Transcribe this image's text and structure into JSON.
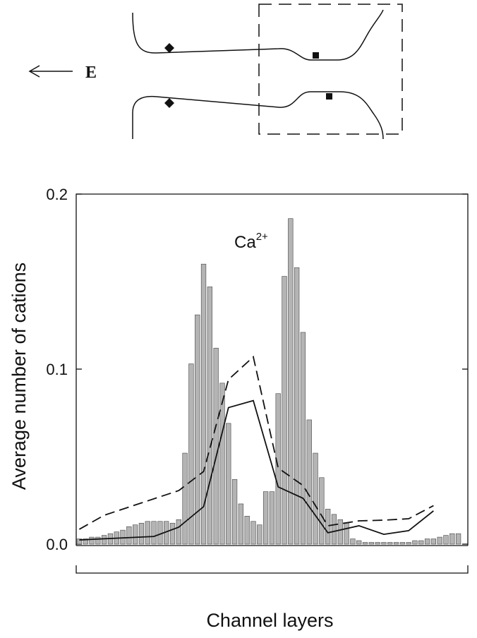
{
  "diagram": {
    "field_label": "E"
  },
  "chart_data": {
    "type": "bar",
    "ylabel": "Average number of cations",
    "xlabel": "Channel layers",
    "annotation": {
      "text": "Ca",
      "sup": "2+"
    },
    "categories": [
      null,
      null,
      null,
      null,
      null,
      null,
      null,
      null,
      null,
      null,
      null,
      null,
      null,
      null,
      null,
      null,
      null,
      null,
      null,
      null,
      null,
      null,
      null,
      null,
      null,
      null,
      null,
      null,
      null,
      null,
      null,
      null,
      null,
      null,
      null,
      null,
      null,
      null,
      null,
      null,
      null,
      null,
      null,
      null,
      null,
      null,
      null,
      null,
      null,
      null,
      null,
      null,
      null,
      null,
      null,
      null,
      null,
      null,
      null,
      null,
      null,
      null
    ],
    "values": [
      0.003,
      0.003,
      0.004,
      0.004,
      0.005,
      0.006,
      0.007,
      0.008,
      0.01,
      0.011,
      0.012,
      0.013,
      0.013,
      0.013,
      0.013,
      0.012,
      0.014,
      0.052,
      0.103,
      0.131,
      0.16,
      0.147,
      0.112,
      0.092,
      0.069,
      0.037,
      0.023,
      0.016,
      0.013,
      0.011,
      0.03,
      0.03,
      0.086,
      0.153,
      0.186,
      0.158,
      0.121,
      0.071,
      0.052,
      0.038,
      0.02,
      0.017,
      0.014,
      0.012,
      0.003,
      0.002,
      0.001,
      0.001,
      0.001,
      0.001,
      0.001,
      0.001,
      0.001,
      0.001,
      0.002,
      0.002,
      0.003,
      0.003,
      0.004,
      0.005,
      0.006,
      0.006
    ],
    "color": "#b4b4b4",
    "lines": [
      {
        "style": "dashed",
        "color": "#111111",
        "x": [
          0,
          4,
          16,
          20,
          24,
          28,
          32,
          36,
          40,
          45,
          49,
          53,
          57
        ],
        "values": [
          0.0085,
          0.0165,
          0.0306,
          0.0415,
          0.094,
          0.107,
          0.0435,
          0.0335,
          0.0105,
          0.0133,
          0.0137,
          0.0145,
          0.022
        ]
      },
      {
        "style": "solid",
        "color": "#111111",
        "x": [
          0,
          12,
          16,
          20,
          24,
          28,
          32,
          36,
          40,
          45,
          49,
          53,
          57
        ],
        "values": [
          0.0024,
          0.0044,
          0.0097,
          0.0214,
          0.078,
          0.082,
          0.0327,
          0.0262,
          0.0065,
          0.0105,
          0.0056,
          0.0077,
          0.019
        ]
      }
    ],
    "ylim": [
      0,
      0.2
    ],
    "yticks": [
      {
        "value": 0,
        "label": "0.0"
      },
      0.1,
      0.2
    ]
  }
}
